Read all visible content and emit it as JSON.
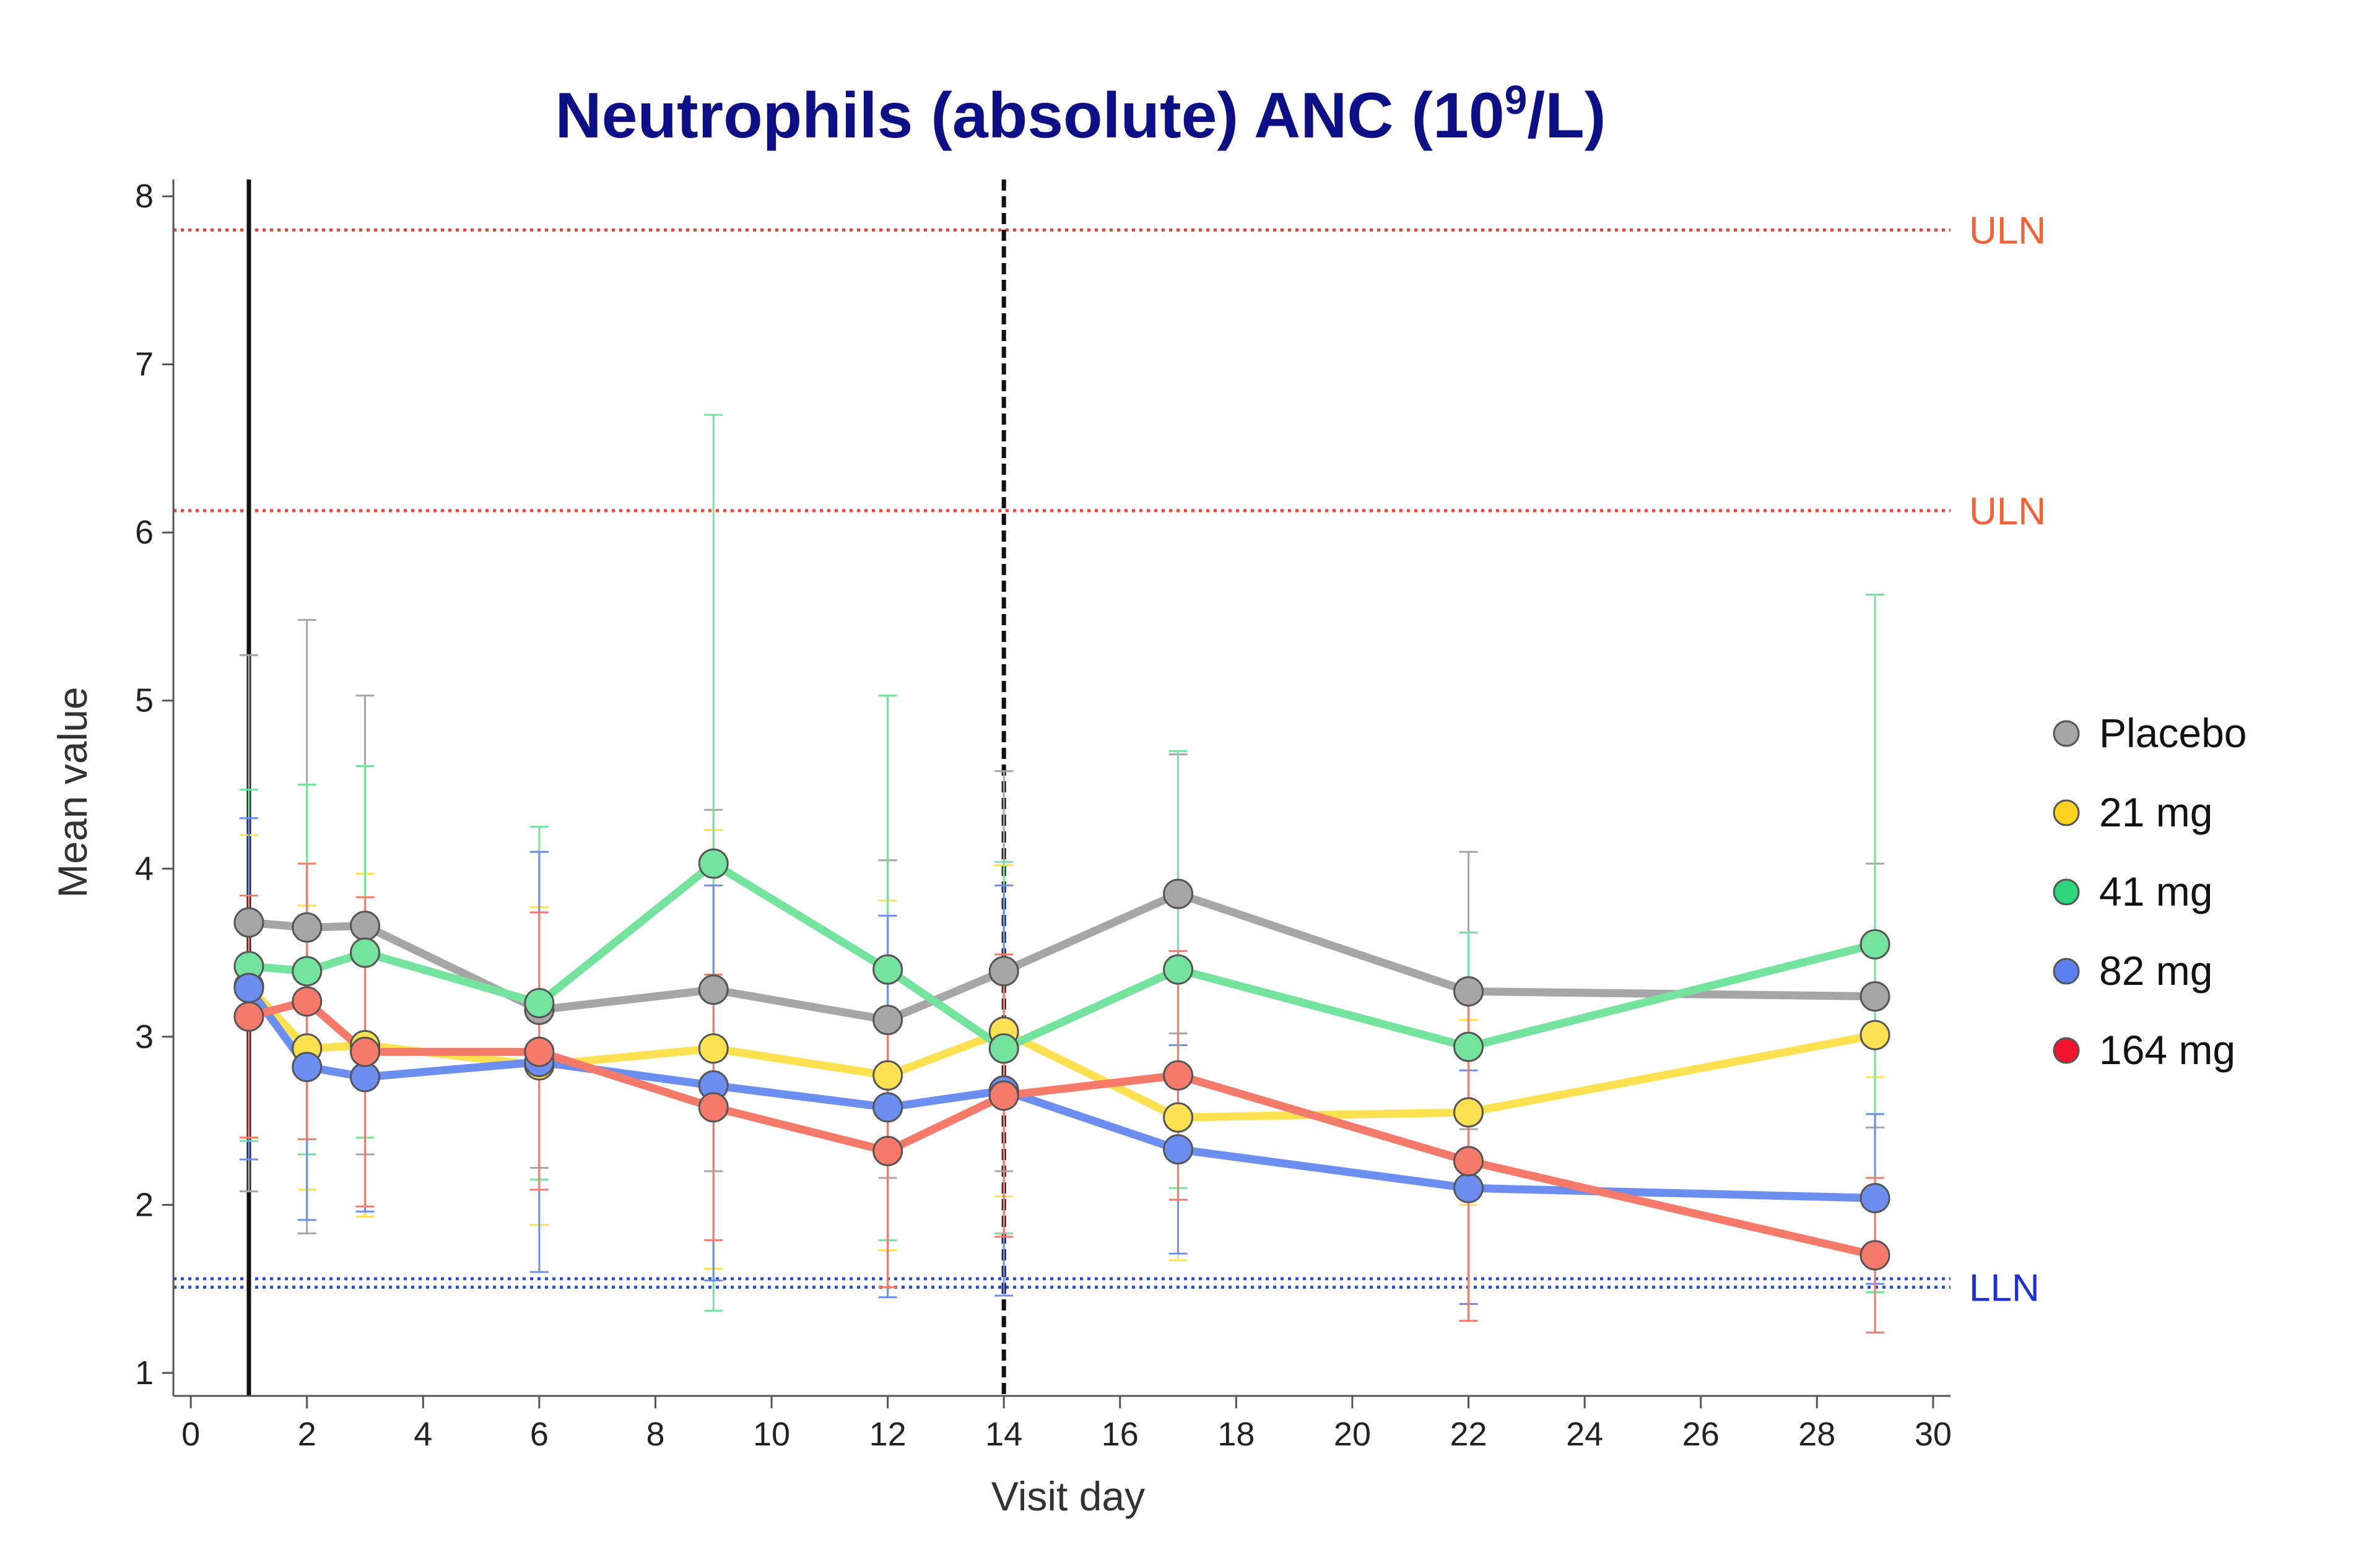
{
  "chart_data": {
    "type": "line",
    "title_main": "Neutrophils (absolute) ANC (10",
    "title_sup": "9",
    "title_end": "/L)",
    "xlabel": "Visit day",
    "ylabel": "Mean value",
    "xlim": [
      -0.3,
      30.3
    ],
    "ylim": [
      0.9,
      8.1
    ],
    "xticks": [
      0,
      2,
      4,
      6,
      8,
      10,
      12,
      14,
      16,
      18,
      20,
      22,
      24,
      26,
      28,
      30
    ],
    "yticks": [
      1,
      2,
      3,
      4,
      5,
      6,
      7,
      8
    ],
    "legend_position": "right",
    "reference_lines": [
      {
        "name": "uln-line-upper",
        "label": "ULN",
        "value": 7.8,
        "color": "#e8453c",
        "label_color": "#f0623a"
      },
      {
        "name": "uln-line-lower",
        "label": "ULN",
        "value": 6.13,
        "color": "#e8453c",
        "label_color": "#f0623a"
      },
      {
        "name": "lln-line-upper",
        "label": "",
        "value": 1.56,
        "color": "#2a4fd6",
        "label_color": "#1f2fd6"
      },
      {
        "name": "lln-line-lower",
        "label": "LLN",
        "value": 1.51,
        "color": "#2a4fd6",
        "label_color": "#1f2fd6"
      }
    ],
    "vertical_markers": [
      {
        "name": "dosing-start-line",
        "x": 1,
        "style": "solid",
        "color": "#111111"
      },
      {
        "name": "day-14-line",
        "x": 14,
        "style": "dashed",
        "color": "#111111"
      }
    ],
    "series": [
      {
        "name": "Placebo",
        "line_color": "#a6a6a6",
        "marker_color": "#a6a6a6",
        "legend_color": "#a6a6a6",
        "x": [
          1,
          2,
          3,
          6,
          9,
          12,
          14,
          17,
          22,
          29
        ],
        "values": [
          3.68,
          3.65,
          3.66,
          3.16,
          3.28,
          3.1,
          3.39,
          3.85,
          3.27,
          3.24
        ],
        "err_low": [
          2.08,
          1.83,
          2.3,
          2.22,
          2.2,
          2.16,
          2.2,
          3.02,
          2.45,
          2.46
        ],
        "err_high": [
          5.27,
          5.48,
          5.03,
          4.1,
          4.35,
          4.05,
          4.58,
          4.68,
          4.1,
          4.03
        ]
      },
      {
        "name": "21 mg",
        "line_color": "#fde150",
        "marker_color": "#fde150",
        "legend_color": "#ffd21f",
        "x": [
          1,
          2,
          3,
          6,
          9,
          12,
          14,
          17,
          22,
          29
        ],
        "values": [
          3.3,
          2.93,
          2.95,
          2.83,
          2.93,
          2.77,
          3.03,
          2.52,
          2.55,
          3.01
        ],
        "err_low": [
          2.4,
          2.09,
          1.93,
          1.88,
          1.62,
          1.73,
          2.05,
          1.67,
          2.0,
          2.76
        ],
        "err_high": [
          4.2,
          3.78,
          3.97,
          3.77,
          4.23,
          3.81,
          4.02,
          3.38,
          3.1,
          3.26
        ]
      },
      {
        "name": "41 mg",
        "line_color": "#74e39e",
        "marker_color": "#74e39e",
        "legend_color": "#2dd67a",
        "x": [
          1,
          2,
          3,
          6,
          9,
          12,
          14,
          17,
          22,
          29
        ],
        "values": [
          3.42,
          3.39,
          3.5,
          3.2,
          4.03,
          3.4,
          2.93,
          3.4,
          2.94,
          3.55
        ],
        "err_low": [
          2.38,
          2.3,
          2.4,
          2.15,
          1.37,
          1.79,
          1.83,
          2.1,
          2.27,
          1.48
        ],
        "err_high": [
          4.47,
          4.5,
          4.61,
          4.25,
          6.7,
          5.03,
          4.04,
          4.7,
          3.62,
          5.63
        ]
      },
      {
        "name": "82 mg",
        "line_color": "#6b8ef0",
        "marker_color": "#6b8ef0",
        "legend_color": "#5b7ff0",
        "x": [
          1,
          2,
          3,
          6,
          9,
          12,
          14,
          17,
          22,
          29
        ],
        "values": [
          3.29,
          2.82,
          2.76,
          2.85,
          2.71,
          2.58,
          2.68,
          2.33,
          2.1,
          2.04
        ],
        "err_low": [
          2.27,
          1.91,
          1.96,
          1.6,
          1.55,
          1.45,
          1.46,
          1.71,
          1.41,
          1.53
        ],
        "err_high": [
          4.3,
          3.72,
          3.56,
          4.1,
          3.9,
          3.72,
          3.9,
          2.95,
          2.8,
          2.54
        ]
      },
      {
        "name": "164 mg",
        "line_color": "#f57a6a",
        "marker_color": "#f57a6a",
        "legend_color": "#f0142d",
        "x": [
          1,
          2,
          3,
          6,
          9,
          12,
          14,
          17,
          22,
          29
        ],
        "values": [
          3.12,
          3.21,
          2.91,
          2.91,
          2.58,
          2.32,
          2.65,
          2.77,
          2.26,
          1.7
        ],
        "err_low": [
          2.4,
          2.39,
          1.99,
          2.09,
          1.79,
          1.51,
          1.81,
          2.03,
          1.31,
          1.24
        ],
        "err_high": [
          3.84,
          4.03,
          3.83,
          3.74,
          3.37,
          3.13,
          3.49,
          3.51,
          3.21,
          2.16
        ]
      }
    ]
  }
}
